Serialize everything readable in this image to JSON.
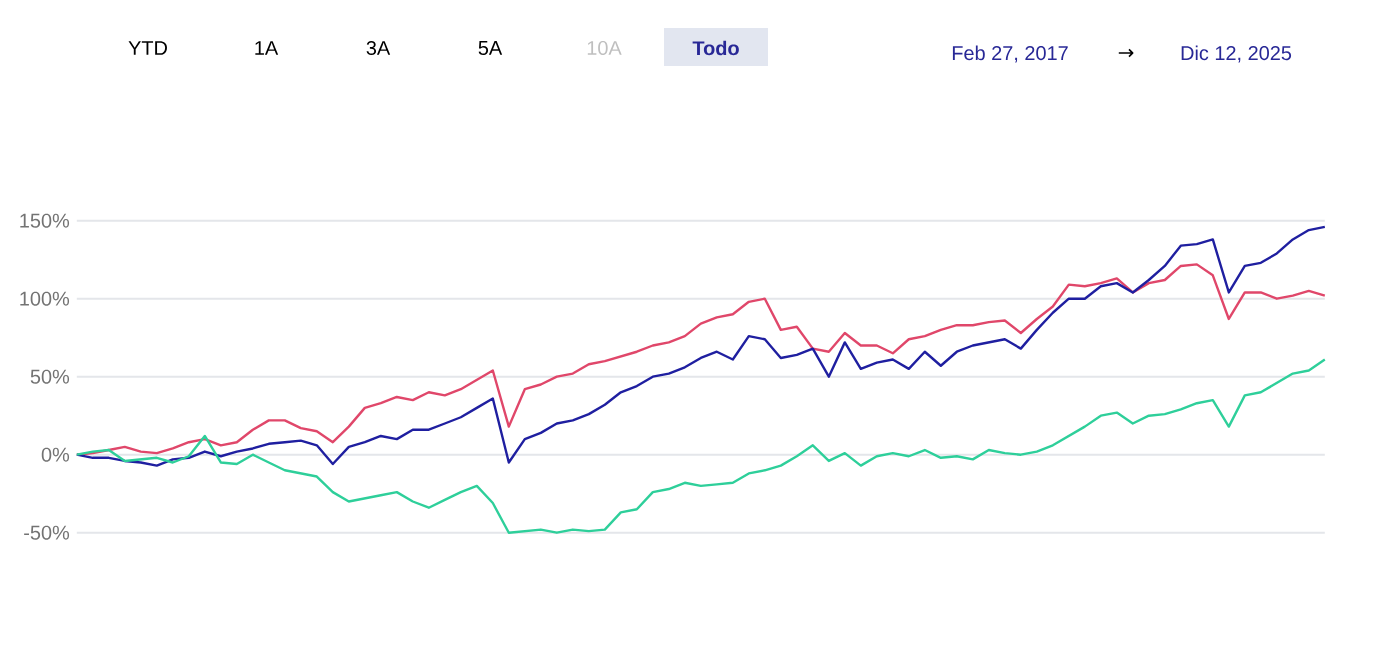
{
  "chart_data": {
    "type": "line",
    "annotations": [
      "YTD",
      "1A",
      "3A",
      "5A",
      "10A",
      "Todo",
      "Feb 27, 2017",
      "→",
      "Dic 12, 2025"
    ],
    "categories": [
      null,
      null,
      null,
      null,
      null,
      null,
      null,
      null,
      null,
      null,
      null,
      null,
      null,
      null,
      null,
      null,
      null,
      null,
      null,
      null,
      null,
      null,
      null,
      null,
      null,
      null,
      null,
      null,
      null,
      null,
      null,
      null,
      null,
      null,
      null,
      null,
      null,
      null,
      null,
      null,
      null,
      null,
      null,
      null,
      null,
      null,
      null,
      null,
      null,
      null,
      null,
      null,
      null,
      null,
      null,
      null,
      null,
      null,
      null,
      null,
      null,
      null,
      null,
      null,
      null,
      null,
      null,
      null,
      null,
      null,
      null,
      null,
      null,
      null,
      null,
      null,
      null,
      null,
      null
    ],
    "series": [
      {
        "color": "#e0476a",
        "values": [
          0,
          1,
          3,
          5,
          2,
          1,
          4,
          8,
          10,
          6,
          8,
          16,
          22,
          22,
          17,
          15,
          8,
          18,
          30,
          33,
          37,
          35,
          40,
          38,
          42,
          48,
          54,
          18,
          42,
          45,
          50,
          52,
          58,
          60,
          63,
          66,
          70,
          72,
          76,
          84,
          88,
          90,
          98,
          100,
          80,
          82,
          68,
          66,
          78,
          70,
          70,
          65,
          74,
          76,
          80,
          83,
          83,
          85,
          86,
          78,
          87,
          95,
          109,
          108,
          110,
          113,
          104,
          110,
          112,
          121,
          122,
          115,
          87,
          104,
          104,
          100,
          102,
          105,
          102
        ]
      },
      {
        "color": "#1f1fa0",
        "values": [
          0,
          -2,
          -2,
          -4,
          -5,
          -7,
          -3,
          -2,
          2,
          -1,
          2,
          4,
          7,
          8,
          9,
          6,
          -6,
          5,
          8,
          12,
          10,
          16,
          16,
          20,
          24,
          30,
          36,
          -5,
          10,
          14,
          20,
          22,
          26,
          32,
          40,
          44,
          50,
          52,
          56,
          62,
          66,
          61,
          76,
          74,
          62,
          64,
          68,
          50,
          72,
          55,
          59,
          61,
          55,
          66,
          57,
          66,
          70,
          72,
          74,
          68,
          80,
          91,
          100,
          100,
          108,
          110,
          104,
          112,
          121,
          134,
          135,
          138,
          104,
          121,
          123,
          129,
          138,
          144,
          146
        ]
      },
      {
        "color": "#2ecf9a",
        "values": [
          0,
          2,
          3,
          -4,
          -3,
          -2,
          -5,
          -1,
          12,
          -5,
          -6,
          0,
          -5,
          -10,
          -12,
          -14,
          -24,
          -30,
          -28,
          -26,
          -24,
          -30,
          -34,
          -29,
          -24,
          -20,
          -31,
          -50,
          -49,
          -48,
          -50,
          -48,
          -49,
          -48,
          -37,
          -35,
          -24,
          -22,
          -18,
          -20,
          -19,
          -18,
          -12,
          -10,
          -7,
          -1,
          6,
          -4,
          1,
          -7,
          -1,
          1,
          -1,
          3,
          -2,
          -1,
          -3,
          3,
          1,
          0,
          2,
          6,
          12,
          18,
          25,
          27,
          20,
          25,
          26,
          29,
          33,
          35,
          18,
          38,
          40,
          46,
          52,
          54,
          61
        ]
      }
    ],
    "yticks": [
      {
        "value": -50,
        "label": "-50%"
      },
      {
        "value": 0,
        "label": "0%"
      },
      {
        "value": 50,
        "label": "50%"
      },
      {
        "value": 100,
        "label": "100%"
      },
      {
        "value": 150,
        "label": "150%"
      }
    ],
    "ylim": [
      -50,
      150
    ],
    "grid": "y",
    "marker": "none",
    "line_style": "solid"
  }
}
